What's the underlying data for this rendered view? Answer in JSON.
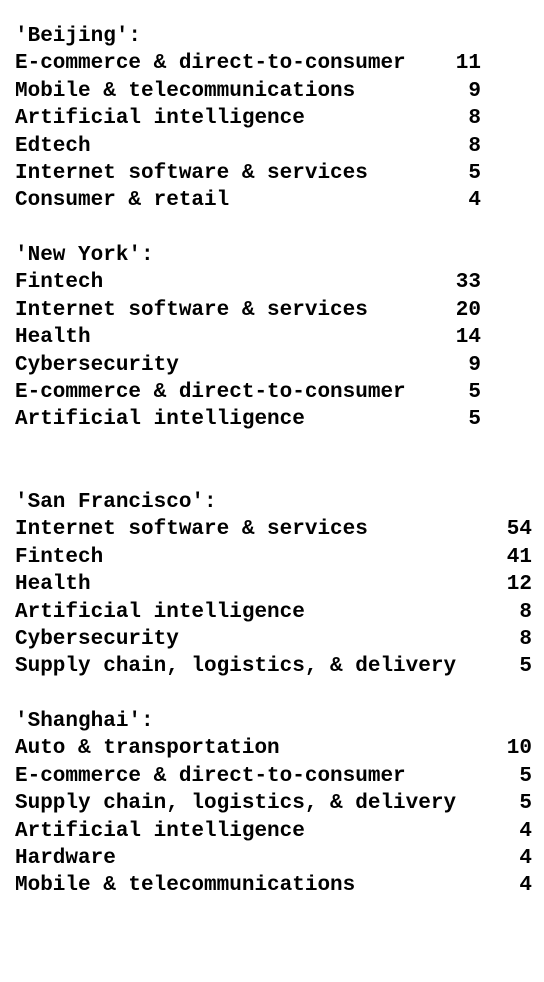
{
  "groups": [
    {
      "title": "'Beijing':",
      "rows": [
        {
          "label": "E-commerce & direct-to-consumer",
          "count": "11"
        },
        {
          "label": "Mobile & telecommunications",
          "count": "9"
        },
        {
          "label": "Artificial intelligence",
          "count": "8"
        },
        {
          "label": "Edtech",
          "count": "8"
        },
        {
          "label": "Internet software & services",
          "count": "5"
        },
        {
          "label": "Consumer & retail",
          "count": "4"
        }
      ]
    },
    {
      "title": "'New York':",
      "rows": [
        {
          "label": "Fintech",
          "count": "33"
        },
        {
          "label": "Internet software & services",
          "count": "20"
        },
        {
          "label": "Health",
          "count": "14"
        },
        {
          "label": "Cybersecurity",
          "count": "9"
        },
        {
          "label": "E-commerce & direct-to-consumer",
          "count": "5"
        },
        {
          "label": "Artificial intelligence",
          "count": "5"
        }
      ]
    },
    {
      "title": "'San Francisco':",
      "rows": [
        {
          "label": "Internet software & services",
          "count": "54"
        },
        {
          "label": "Fintech",
          "count": "41"
        },
        {
          "label": "Health",
          "count": "12"
        },
        {
          "label": "Artificial intelligence",
          "count": "8"
        },
        {
          "label": "Cybersecurity",
          "count": "8"
        },
        {
          "label": "Supply chain, logistics, & delivery",
          "count": "5"
        }
      ]
    },
    {
      "title": "'Shanghai':",
      "rows": [
        {
          "label": "Auto & transportation",
          "count": "10"
        },
        {
          "label": "E-commerce & direct-to-consumer",
          "count": "5"
        },
        {
          "label": "Supply chain, logistics, & delivery",
          "count": "5"
        },
        {
          "label": "Artificial intelligence",
          "count": "4"
        },
        {
          "label": "Hardware",
          "count": "4"
        },
        {
          "label": "Mobile & telecommunications",
          "count": "4"
        }
      ]
    }
  ]
}
